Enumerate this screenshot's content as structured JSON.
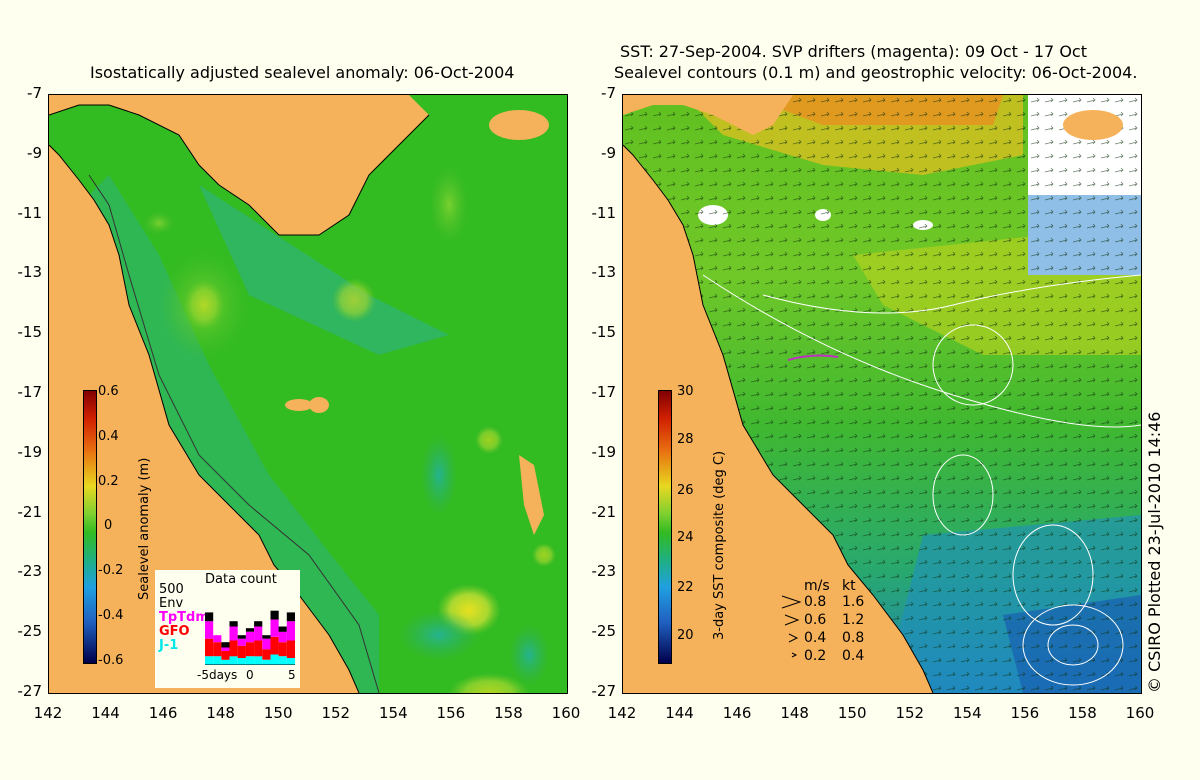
{
  "left_panel": {
    "title": "Isostatically adjusted sealevel anomaly: 06-Oct-2004",
    "colorbar": {
      "label": "Sealevel anomaly (m)",
      "ticks": [
        "0.6",
        "0.4",
        "0.2",
        "0",
        "-0.2",
        "-0.4",
        "-0.6"
      ]
    },
    "data_count": {
      "title": "Data count",
      "scale_label": "500",
      "satellites": [
        {
          "name": "Env",
          "color": "#000000"
        },
        {
          "name": "TpTdm",
          "color": "#ff00ff"
        },
        {
          "name": "GFO",
          "color": "#ff0000"
        },
        {
          "name": "J-1",
          "color": "#00ffff"
        }
      ],
      "x_ticks": [
        "-5days",
        "0",
        "5"
      ]
    }
  },
  "right_panel": {
    "title_line1": "SST: 27-Sep-2004. SVP drifters (magenta): 09 Oct - 17 Oct",
    "title_line2": "Sealevel contours (0.1 m) and geostrophic velocity: 06-Oct-2004.",
    "colorbar": {
      "label": "3-day SST composite (deg C)",
      "ticks": [
        "30",
        "28",
        "26",
        "24",
        "22",
        "20"
      ]
    },
    "velocity_legend": {
      "header_ms": "m/s",
      "header_kt": "kt",
      "rows": [
        {
          "ms": "0.8",
          "kt": "1.6"
        },
        {
          "ms": "0.6",
          "kt": "1.2"
        },
        {
          "ms": "0.4",
          "kt": "0.8"
        },
        {
          "ms": "0.2",
          "kt": "0.4"
        }
      ]
    }
  },
  "axes": {
    "y_ticks": [
      "-7",
      "-9",
      "-11",
      "-13",
      "-15",
      "-17",
      "-19",
      "-21",
      "-23",
      "-25",
      "-27"
    ],
    "x_ticks": [
      "142",
      "144",
      "146",
      "148",
      "150",
      "152",
      "154",
      "156",
      "158",
      "160"
    ]
  },
  "copyright": "© CSIRO Plotted 23-Jul-2010 14:46",
  "colors": {
    "land": "#f6b25a",
    "ocean_sla": "#33bb22",
    "background": "#fffff0"
  },
  "chart_data": [
    {
      "type": "heatmap",
      "title": "Isostatically adjusted sealevel anomaly: 06-Oct-2004",
      "xlim": [
        142,
        160
      ],
      "ylim": [
        -27,
        -7
      ],
      "colorbar_range": [
        -0.6,
        0.6
      ],
      "colorbar_label": "Sealevel anomaly (m)"
    },
    {
      "type": "heatmap",
      "title": "SST: 27-Sep-2004. SVP drifters (magenta): 09 Oct - 17 Oct",
      "xlim": [
        142,
        160
      ],
      "ylim": [
        -27,
        -7
      ],
      "colorbar_range": [
        20,
        30
      ],
      "colorbar_label": "3-day SST composite (deg C)"
    },
    {
      "type": "bar",
      "title": "Data count",
      "categories": [
        "-5",
        "-4",
        "-3",
        "-2",
        "-1",
        "0",
        "1",
        "2",
        "3",
        "4",
        "5"
      ],
      "series": [
        {
          "name": "J-1",
          "values": [
            50,
            50,
            30,
            50,
            40,
            50,
            50,
            30,
            60,
            50,
            40
          ]
        },
        {
          "name": "GFO",
          "values": [
            100,
            80,
            50,
            90,
            70,
            80,
            90,
            60,
            100,
            80,
            100
          ]
        },
        {
          "name": "TpTdm",
          "values": [
            100,
            40,
            20,
            80,
            40,
            60,
            80,
            60,
            100,
            60,
            110
          ]
        },
        {
          "name": "Env",
          "values": [
            50,
            0,
            30,
            30,
            20,
            20,
            30,
            20,
            50,
            30,
            50
          ]
        }
      ],
      "ylim": [
        0,
        500
      ]
    }
  ]
}
